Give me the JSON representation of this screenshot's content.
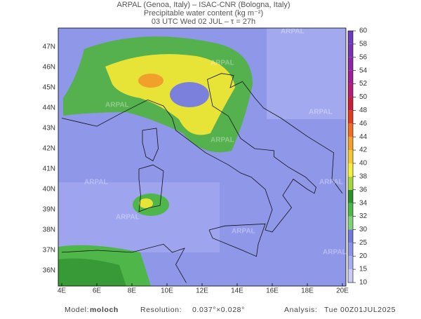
{
  "header": {
    "line1": "ARPAL (Genoa, Italy)  –  ISAC-CNR (Bologna, Italy)",
    "line2": "Precipitable water content (kg m⁻²)",
    "line3": "03 UTC Wed 02 JUL  –  τ = 27h"
  },
  "map": {
    "lat_labels": [
      "47N",
      "46N",
      "45N",
      "44N",
      "43N",
      "42N",
      "41N",
      "40N",
      "39N",
      "38N",
      "37N",
      "36N"
    ],
    "lon_labels": [
      "4E",
      "6E",
      "8E",
      "10E",
      "12E",
      "14E",
      "16E",
      "18E",
      "20E"
    ],
    "watermark": "ARPAL"
  },
  "colorbar": {
    "ticks": [
      10,
      15,
      20,
      25,
      30,
      32,
      34,
      36,
      38,
      40,
      42,
      44,
      46,
      48,
      50,
      52,
      54,
      56,
      58,
      60
    ],
    "colors": [
      "#c9ccf5",
      "#a8aef0",
      "#8c93e6",
      "#7379d8",
      "#7fd27a",
      "#4fb64a",
      "#2e8f2e",
      "#a5d63c",
      "#f5f03a",
      "#f3c832",
      "#f1a02c",
      "#ee6e28",
      "#e03c24",
      "#c81e3c",
      "#b41e78",
      "#a01e96",
      "#8c28aa",
      "#7832b4",
      "#6e3cbe"
    ]
  },
  "footer": {
    "model_label": "Model:",
    "model": "moloch",
    "resolution_label": "Resolution:",
    "resolution": "0.037°×0.028°",
    "analysis_label": "Analysis:",
    "analysis": "Tue 00Z01JUL2025"
  }
}
